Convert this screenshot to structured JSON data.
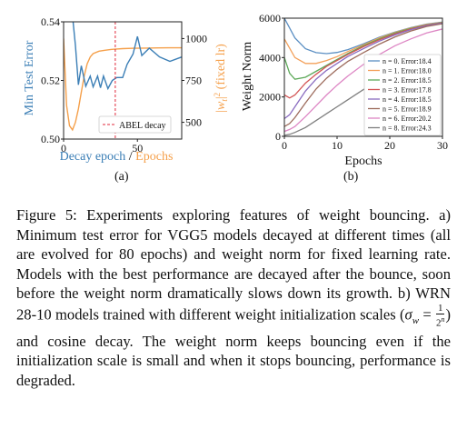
{
  "figure": {
    "panel_a": {
      "letter": "(a)",
      "ylabel_left": "Min Test Error",
      "ylabel_right": "|w_t|^2 (fixed lr)",
      "xlabel_decay": "Decay epoch",
      "xlabel_sep": "/",
      "xlabel_epochs": "Epochs",
      "legend": "ABEL decay",
      "x_ticks": [
        "0",
        "50"
      ],
      "y_ticks_left": [
        "0.50",
        "0.52",
        "0.54"
      ],
      "y_ticks_right": [
        "500",
        "750",
        "1000"
      ],
      "colors": {
        "error": "#3c7fb6",
        "norm": "#f5a04b",
        "decay_line": "#e0293b"
      }
    },
    "panel_b": {
      "letter": "(b)",
      "ylabel": "Weight Norm",
      "xlabel": "Epochs",
      "x_ticks": [
        "0",
        "10",
        "20",
        "30"
      ],
      "y_ticks": [
        "0",
        "2000",
        "4000",
        "6000"
      ],
      "legend": [
        "n = 0. Error:18.4",
        "n = 1. Error:18.0",
        "n = 2. Error:18.5",
        "n = 3. Error:17.8",
        "n = 4. Error:18.5",
        "n = 5. Error:18.9",
        "n = 6. Error:20.2",
        "n = 8. Error:24.3"
      ],
      "colors": [
        "#5b8fc3",
        "#f3a05a",
        "#5ea95a",
        "#d35555",
        "#8a6cc0",
        "#9d6b5c",
        "#dd86c4",
        "#7f7f7f"
      ]
    }
  },
  "chart_data": [
    {
      "type": "line",
      "xlim": [
        0,
        80
      ],
      "ylim": [
        0.5,
        0.54
      ],
      "y2lim": [
        400,
        1100
      ],
      "xlabel": "Decay epoch / Epochs",
      "ylabel": "Min Test Error",
      "y2label": "|w_t|^2 (fixed lr)",
      "legend": "ABEL decay",
      "series": [
        {
          "name": "Min Test Error",
          "x": [
            6,
            8,
            10,
            12,
            15,
            18,
            20,
            23,
            25,
            27,
            30,
            33,
            36,
            40,
            43,
            47,
            50,
            53,
            58,
            65,
            72,
            80
          ],
          "y": [
            0.542,
            0.532,
            0.5185,
            0.525,
            0.518,
            0.5215,
            0.5178,
            0.5215,
            0.5175,
            0.5215,
            0.5172,
            0.52,
            0.521,
            0.521,
            0.5255,
            0.529,
            0.535,
            0.5285,
            0.531,
            0.528,
            0.5265,
            0.528
          ]
        },
        {
          "name": "|w_t|^2 (fixed lr)",
          "axis": "right",
          "x": [
            0,
            2,
            4,
            6,
            8,
            10,
            12,
            14,
            16,
            18,
            20,
            24,
            28,
            32,
            36,
            40,
            48,
            56,
            64,
            72,
            80
          ],
          "y": [
            1000,
            600,
            480,
            455,
            500,
            580,
            680,
            780,
            850,
            890,
            910,
            925,
            930,
            935,
            938,
            940,
            942,
            943,
            944,
            945,
            945
          ]
        }
      ],
      "annotations": [
        {
          "type": "vline",
          "x": 35,
          "label": "ABEL decay"
        }
      ]
    },
    {
      "type": "line",
      "xlabel": "Epochs",
      "ylabel": "Weight Norm",
      "xlim": [
        0,
        30
      ],
      "ylim": [
        0,
        6000
      ],
      "series": [
        {
          "name": "n = 0. Error:18.4",
          "x": [
            0,
            2,
            4,
            6,
            8,
            10,
            12,
            15,
            18,
            21,
            24,
            27,
            30
          ],
          "y": [
            6000,
            5000,
            4450,
            4250,
            4200,
            4260,
            4400,
            4700,
            5030,
            5300,
            5520,
            5700,
            5800
          ]
        },
        {
          "name": "n = 1. Error:18.0",
          "x": [
            0,
            2,
            4,
            6,
            8,
            10,
            12,
            15,
            18,
            21,
            24,
            27,
            30
          ],
          "y": [
            4950,
            4000,
            3700,
            3700,
            3850,
            4050,
            4300,
            4650,
            5000,
            5280,
            5500,
            5680,
            5790
          ]
        },
        {
          "name": "n = 2. Error:18.5",
          "x": [
            0,
            1,
            2,
            4,
            6,
            8,
            10,
            12,
            15,
            18,
            21,
            24,
            27,
            30
          ],
          "y": [
            4000,
            3200,
            2900,
            3000,
            3300,
            3600,
            3900,
            4200,
            4600,
            4950,
            5250,
            5480,
            5660,
            5780
          ]
        },
        {
          "name": "n = 3. Error:17.8",
          "x": [
            0,
            1,
            2,
            4,
            6,
            8,
            10,
            12,
            15,
            18,
            21,
            24,
            27,
            30
          ],
          "y": [
            2100,
            1950,
            2100,
            2700,
            3150,
            3550,
            3850,
            4150,
            4550,
            4900,
            5200,
            5450,
            5640,
            5760
          ]
        },
        {
          "name": "n = 4. Error:18.5",
          "x": [
            0,
            1,
            2,
            4,
            6,
            8,
            10,
            12,
            15,
            18,
            21,
            24,
            27,
            30
          ],
          "y": [
            900,
            1100,
            1500,
            2300,
            2900,
            3350,
            3700,
            4050,
            4450,
            4830,
            5150,
            5420,
            5620,
            5750
          ]
        },
        {
          "name": "n = 5. Error:18.9",
          "x": [
            0,
            1,
            2,
            4,
            6,
            8,
            10,
            12,
            15,
            18,
            21,
            24,
            27,
            30
          ],
          "y": [
            500,
            650,
            950,
            1700,
            2400,
            2950,
            3400,
            3800,
            4250,
            4680,
            5050,
            5350,
            5580,
            5720
          ]
        },
        {
          "name": "n = 6. Error:20.2",
          "x": [
            0,
            1,
            2,
            4,
            6,
            8,
            10,
            12,
            15,
            18,
            21,
            24,
            27,
            30
          ],
          "y": [
            250,
            350,
            500,
            1000,
            1550,
            2100,
            2600,
            3050,
            3650,
            4150,
            4600,
            4950,
            5250,
            5450
          ]
        },
        {
          "name": "n = 8. Error:24.3",
          "x": [
            0,
            1,
            2,
            4,
            6,
            8,
            10,
            12,
            14,
            16
          ],
          "y": [
            50,
            100,
            200,
            450,
            800,
            1150,
            1500,
            1850,
            2200,
            2550
          ]
        }
      ]
    }
  ],
  "caption": {
    "fig_label": "Figure 5:",
    "part1": " Experiments exploring features of weight bouncing. a) Minimum test error for VGG5 models decayed at different times (all are evolved for 80 epochs) and weight norm for fixed learning rate. Models with the best performance are decayed after the bounce, soon before the weight norm dramatically slows down its growth. b) WRN 28-10 models trained with different weight initialization scales (",
    "sigma": "σ",
    "sigma_sub": "w",
    "eq": " = ",
    "frac_num": "1",
    "frac_den_base": "2",
    "frac_den_exp": "n",
    "part2": ") and cosine decay. The weight norm keeps bouncing even if the initialization scale is small and when it stops bouncing, performance is degraded."
  }
}
